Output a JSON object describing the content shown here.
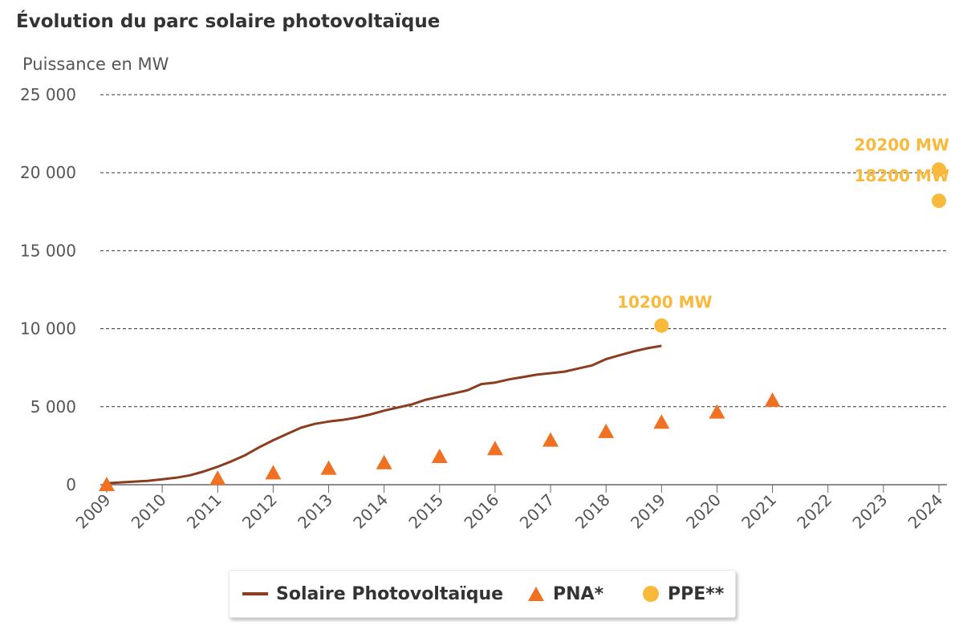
{
  "title": "Évolution du parc solaire photovoltaïque",
  "chart_data": {
    "type": "line",
    "title": "Évolution du parc solaire photovoltaïque",
    "ylabel": "Puissance en MW",
    "xlabel": "",
    "xlim": [
      2009,
      2024
    ],
    "ylim": [
      0,
      25000
    ],
    "x_ticks": [
      "2009",
      "2010",
      "2011",
      "2012",
      "2013",
      "2014",
      "2015",
      "2016",
      "2017",
      "2018",
      "2019",
      "2020",
      "2021",
      "2022",
      "2023",
      "2024"
    ],
    "y_ticks": [
      {
        "value": 0,
        "label": "0"
      },
      {
        "value": 5000,
        "label": "5 000"
      },
      {
        "value": 10000,
        "label": "10 000"
      },
      {
        "value": 15000,
        "label": "15 000"
      },
      {
        "value": 20000,
        "label": "20 000"
      },
      {
        "value": 25000,
        "label": "25 000"
      }
    ],
    "grid": true,
    "legend_position": "bottom",
    "series": [
      {
        "name": "Solaire Photovoltaïque",
        "type": "line",
        "color": "#8b3d1f",
        "points": [
          [
            2009.0,
            100
          ],
          [
            2009.25,
            150
          ],
          [
            2009.5,
            200
          ],
          [
            2009.75,
            250
          ],
          [
            2010.0,
            350
          ],
          [
            2010.25,
            450
          ],
          [
            2010.5,
            600
          ],
          [
            2010.75,
            850
          ],
          [
            2011.0,
            1150
          ],
          [
            2011.25,
            1500
          ],
          [
            2011.5,
            1900
          ],
          [
            2011.75,
            2400
          ],
          [
            2012.0,
            2850
          ],
          [
            2012.25,
            3250
          ],
          [
            2012.5,
            3650
          ],
          [
            2012.75,
            3900
          ],
          [
            2013.0,
            4050
          ],
          [
            2013.25,
            4150
          ],
          [
            2013.5,
            4300
          ],
          [
            2013.75,
            4500
          ],
          [
            2014.0,
            4750
          ],
          [
            2014.25,
            4950
          ],
          [
            2014.5,
            5150
          ],
          [
            2014.75,
            5450
          ],
          [
            2015.0,
            5650
          ],
          [
            2015.25,
            5850
          ],
          [
            2015.5,
            6050
          ],
          [
            2015.75,
            6450
          ],
          [
            2016.0,
            6550
          ],
          [
            2016.25,
            6750
          ],
          [
            2016.5,
            6900
          ],
          [
            2016.75,
            7050
          ],
          [
            2017.0,
            7150
          ],
          [
            2017.25,
            7250
          ],
          [
            2017.5,
            7450
          ],
          [
            2017.75,
            7650
          ],
          [
            2018.0,
            8050
          ],
          [
            2018.25,
            8300
          ],
          [
            2018.5,
            8550
          ],
          [
            2018.75,
            8750
          ],
          [
            2019.0,
            8900
          ]
        ]
      },
      {
        "name": "PNA*",
        "type": "scatter",
        "marker": "triangle",
        "color": "#f07122",
        "points": [
          [
            2009,
            0
          ],
          [
            2011,
            400
          ],
          [
            2012,
            750
          ],
          [
            2013,
            1050
          ],
          [
            2014,
            1400
          ],
          [
            2015,
            1800
          ],
          [
            2016,
            2300
          ],
          [
            2017,
            2850
          ],
          [
            2018,
            3400
          ],
          [
            2019,
            4000
          ],
          [
            2020,
            4650
          ],
          [
            2021,
            5400
          ]
        ]
      },
      {
        "name": "PPE**",
        "type": "scatter",
        "marker": "circle",
        "color": "#f9b93a",
        "points": [
          [
            2019,
            10200
          ],
          [
            2024,
            20200
          ],
          [
            2024,
            18200
          ]
        ],
        "labels": [
          "10200 MW",
          "20200 MW",
          "18200 MW"
        ]
      }
    ]
  },
  "legend": {
    "items": [
      {
        "label": "Solaire Photovoltaïque",
        "color": "#8b3d1f"
      },
      {
        "label": "PNA*",
        "color": "#f07122"
      },
      {
        "label": "PPE**",
        "color": "#f9b93a"
      }
    ]
  }
}
